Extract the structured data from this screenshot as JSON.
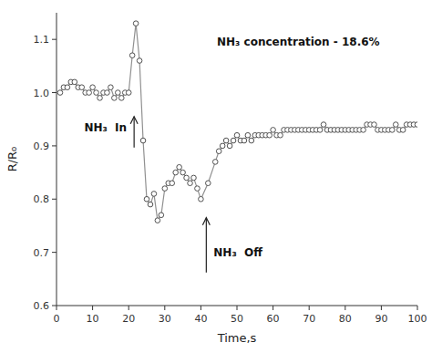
{
  "chart_data": {
    "type": "line",
    "title": "NH₃ concentration - 18.6%",
    "x_label": "Time,s",
    "y_label": "R/R₀",
    "x": [
      1,
      2,
      3,
      4,
      5,
      6,
      7,
      8,
      9,
      10,
      11,
      12,
      13,
      14,
      15,
      16,
      17,
      18,
      19,
      20,
      21,
      22,
      23,
      24,
      25,
      26,
      27,
      28,
      29,
      30,
      31,
      32,
      33,
      34,
      35,
      36,
      37,
      38,
      39,
      40,
      42,
      44,
      45,
      46,
      47,
      48,
      49,
      50,
      51,
      52,
      53,
      54,
      55,
      56,
      57,
      58,
      59,
      60,
      61,
      62,
      63,
      64,
      65,
      66,
      67,
      68,
      69,
      70,
      71,
      72,
      73,
      74,
      75,
      76,
      77,
      78,
      79,
      80,
      81,
      82,
      83,
      84,
      85,
      86,
      87,
      88,
      89,
      90,
      91,
      92,
      93,
      94,
      95,
      96,
      97,
      98,
      99,
      100
    ],
    "values": [
      1.0,
      1.01,
      1.01,
      1.02,
      1.02,
      1.01,
      1.01,
      1.0,
      1.0,
      1.01,
      1.0,
      0.99,
      1.0,
      1.0,
      1.01,
      0.99,
      1.0,
      0.99,
      1.0,
      1.0,
      1.07,
      1.13,
      1.06,
      0.91,
      0.8,
      0.79,
      0.81,
      0.76,
      0.77,
      0.82,
      0.83,
      0.83,
      0.85,
      0.86,
      0.85,
      0.84,
      0.83,
      0.84,
      0.82,
      0.8,
      0.83,
      0.87,
      0.89,
      0.9,
      0.91,
      0.9,
      0.91,
      0.92,
      0.91,
      0.91,
      0.92,
      0.91,
      0.92,
      0.92,
      0.92,
      0.92,
      0.92,
      0.93,
      0.92,
      0.92,
      0.93,
      0.93,
      0.93,
      0.93,
      0.93,
      0.93,
      0.93,
      0.93,
      0.93,
      0.93,
      0.93,
      0.94,
      0.93,
      0.93,
      0.93,
      0.93,
      0.93,
      0.93,
      0.93,
      0.93,
      0.93,
      0.93,
      0.93,
      0.94,
      0.94,
      0.94,
      0.93,
      0.93,
      0.93,
      0.93,
      0.93,
      0.94,
      0.93,
      0.93,
      0.94,
      0.94,
      0.94,
      0.94
    ],
    "color": "#909090",
    "marker": "circle",
    "xlim": [
      0,
      100
    ],
    "ylim": [
      0.6,
      1.15
    ],
    "xticks": [
      0,
      10,
      20,
      30,
      40,
      50,
      60,
      70,
      80,
      90,
      100
    ],
    "yticks": [
      0.6,
      0.7,
      0.8,
      0.9,
      {
        "value": 1.0,
        "label": "1.0"
      },
      1.1
    ],
    "grid": false,
    "annotations": [
      {
        "text": "NH₃  In",
        "x": 21.5,
        "y": 0.955
      },
      {
        "text": "NH₃  Off",
        "x": 41.5,
        "y": 0.765
      }
    ]
  }
}
